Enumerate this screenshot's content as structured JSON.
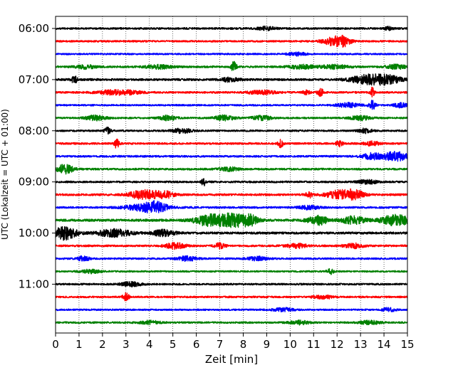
{
  "chart_data": {
    "type": "line",
    "title": "",
    "xlabel": "Zeit  [min]",
    "ylabel": "UTC (Lokalzeit = UTC + 01:00)",
    "xlim": [
      0,
      15
    ],
    "x_ticks": [
      "0",
      "1",
      "2",
      "3",
      "4",
      "5",
      "6",
      "7",
      "8",
      "9",
      "10",
      "11",
      "12",
      "13",
      "14",
      "15"
    ],
    "y_tick_labels": [
      "06:00",
      "07:00",
      "08:00",
      "09:00",
      "10:00",
      "11:00"
    ],
    "trace_minutes": 15,
    "trace_start_minutes": [
      360,
      375,
      390,
      405,
      420,
      435,
      450,
      465,
      480,
      495,
      510,
      525,
      540,
      555,
      570,
      585,
      600,
      615,
      630,
      645,
      660,
      675,
      690,
      705
    ],
    "grid": true,
    "colors": [
      "#000000",
      "#ff0000",
      "#0000ff",
      "#008000"
    ],
    "traces": [
      {
        "row": 0,
        "noise": 1.3,
        "bursts": [
          [
            9.0,
            0.25,
            2.5
          ],
          [
            14.2,
            0.15,
            2
          ]
        ]
      },
      {
        "row": 1,
        "noise": 1.2,
        "bursts": [
          [
            11.9,
            0.35,
            6
          ],
          [
            12.3,
            0.2,
            4
          ]
        ]
      },
      {
        "row": 2,
        "noise": 1.1,
        "bursts": [
          [
            10.3,
            0.3,
            2
          ]
        ]
      },
      {
        "row": 3,
        "noise": 1.3,
        "bursts": [
          [
            7.6,
            0.08,
            7
          ],
          [
            4.4,
            0.4,
            2.5
          ],
          [
            1.3,
            0.3,
            2.5
          ],
          [
            10.5,
            0.4,
            2.5
          ],
          [
            11.9,
            0.4,
            2.5
          ],
          [
            14.5,
            0.3,
            3
          ]
        ]
      },
      {
        "row": 4,
        "noise": 1.5,
        "bursts": [
          [
            0.8,
            0.08,
            6
          ],
          [
            13.3,
            0.5,
            6
          ],
          [
            14.2,
            0.4,
            5
          ],
          [
            7.4,
            0.3,
            2.5
          ]
        ]
      },
      {
        "row": 5,
        "noise": 1.3,
        "bursts": [
          [
            2.7,
            0.6,
            3.5
          ],
          [
            13.5,
            0.06,
            7
          ],
          [
            11.3,
            0.1,
            5
          ],
          [
            8.8,
            0.4,
            2.5
          ],
          [
            10.7,
            0.1,
            3
          ]
        ]
      },
      {
        "row": 6,
        "noise": 1.1,
        "bursts": [
          [
            12.5,
            0.35,
            3
          ],
          [
            13.5,
            0.1,
            6
          ],
          [
            14.7,
            0.2,
            3
          ]
        ]
      },
      {
        "row": 7,
        "noise": 1.2,
        "bursts": [
          [
            1.7,
            0.3,
            3.5
          ],
          [
            4.8,
            0.25,
            3.5
          ],
          [
            7.2,
            0.3,
            3.5
          ],
          [
            8.8,
            0.3,
            3
          ],
          [
            13.0,
            0.3,
            3
          ]
        ]
      },
      {
        "row": 8,
        "noise": 1.2,
        "bursts": [
          [
            2.2,
            0.1,
            5
          ],
          [
            5.4,
            0.3,
            3
          ],
          [
            13.2,
            0.2,
            3
          ]
        ]
      },
      {
        "row": 9,
        "noise": 1.3,
        "bursts": [
          [
            2.6,
            0.08,
            6
          ],
          [
            9.6,
            0.08,
            5
          ],
          [
            12.1,
            0.1,
            4
          ],
          [
            13.5,
            0.25,
            3
          ]
        ]
      },
      {
        "row": 10,
        "noise": 1.3,
        "bursts": [
          [
            14.5,
            0.4,
            6
          ],
          [
            13.5,
            0.3,
            4
          ]
        ]
      },
      {
        "row": 11,
        "noise": 1.3,
        "bursts": [
          [
            0.4,
            0.25,
            6
          ],
          [
            7.4,
            0.3,
            2.5
          ]
        ]
      },
      {
        "row": 12,
        "noise": 1.3,
        "bursts": [
          [
            6.3,
            0.06,
            6
          ],
          [
            13.3,
            0.3,
            2.5
          ]
        ]
      },
      {
        "row": 13,
        "noise": 1.4,
        "bursts": [
          [
            3.7,
            0.4,
            6
          ],
          [
            4.6,
            0.3,
            5
          ],
          [
            12.2,
            0.45,
            6
          ],
          [
            12.8,
            0.25,
            4
          ],
          [
            10.8,
            0.1,
            4
          ]
        ]
      },
      {
        "row": 14,
        "noise": 1.3,
        "bursts": [
          [
            3.8,
            0.6,
            4.5
          ],
          [
            4.3,
            0.3,
            5
          ],
          [
            10.8,
            0.3,
            2.5
          ]
        ]
      },
      {
        "row": 15,
        "noise": 1.6,
        "bursts": [
          [
            6.5,
            0.45,
            7
          ],
          [
            7.6,
            0.45,
            9
          ],
          [
            8.3,
            0.25,
            5
          ],
          [
            11.2,
            0.3,
            6
          ],
          [
            12.7,
            0.35,
            5
          ],
          [
            14.5,
            0.45,
            7
          ]
        ]
      },
      {
        "row": 16,
        "noise": 1.5,
        "bursts": [
          [
            0.4,
            0.35,
            9
          ],
          [
            2.5,
            0.5,
            5
          ],
          [
            4.6,
            0.35,
            4
          ]
        ]
      },
      {
        "row": 17,
        "noise": 1.3,
        "bursts": [
          [
            5.1,
            0.3,
            4
          ],
          [
            7.0,
            0.15,
            4
          ],
          [
            10.3,
            0.3,
            3
          ],
          [
            12.7,
            0.3,
            3
          ]
        ]
      },
      {
        "row": 18,
        "noise": 1.2,
        "bursts": [
          [
            1.2,
            0.15,
            4
          ],
          [
            5.6,
            0.3,
            3
          ],
          [
            8.6,
            0.3,
            2.5
          ]
        ]
      },
      {
        "row": 19,
        "noise": 1.1,
        "bursts": [
          [
            1.5,
            0.3,
            2.5
          ],
          [
            11.7,
            0.1,
            4
          ]
        ]
      },
      {
        "row": 20,
        "noise": 1.2,
        "bursts": [
          [
            3.2,
            0.3,
            3
          ]
        ]
      },
      {
        "row": 21,
        "noise": 1.2,
        "bursts": [
          [
            3.0,
            0.1,
            5
          ],
          [
            11.4,
            0.3,
            2.5
          ]
        ]
      },
      {
        "row": 22,
        "noise": 1.1,
        "bursts": [
          [
            9.7,
            0.3,
            2.5
          ],
          [
            14.2,
            0.2,
            2.5
          ]
        ]
      },
      {
        "row": 23,
        "noise": 1.2,
        "bursts": [
          [
            4.0,
            0.3,
            2.5
          ],
          [
            10.4,
            0.3,
            2.5
          ],
          [
            13.4,
            0.3,
            2.5
          ]
        ]
      }
    ]
  }
}
